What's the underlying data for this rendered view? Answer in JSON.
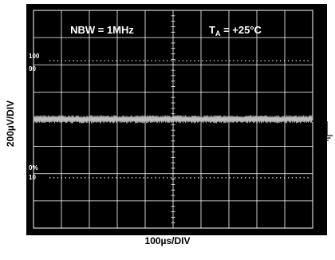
{
  "header": {
    "bandwidth": "NBW = 1MHz",
    "temp_prefix": "T",
    "temp_sub": "A",
    "temp_value": " = +25°C"
  },
  "markers": {
    "m100": "100",
    "m90": "90",
    "m10": "10",
    "m0": "0%"
  },
  "colors": {
    "screen": "#000000",
    "grid": "#ffffff",
    "trace": "#bdbdbd"
  },
  "chart_data": {
    "type": "line",
    "title": "",
    "xlabel": "100µs/DIV",
    "ylabel": "200µV/DIV",
    "grid": true,
    "x_divisions": 10,
    "y_divisions": 8,
    "xlim": [
      0,
      1000
    ],
    "ylim": [
      -800,
      800
    ],
    "x_unit": "µs",
    "y_unit": "µV",
    "series": [
      {
        "description_of_signal": "wideband noise",
        "center_uV": 0,
        "peak_to_peak_uV": 60
      }
    ]
  }
}
